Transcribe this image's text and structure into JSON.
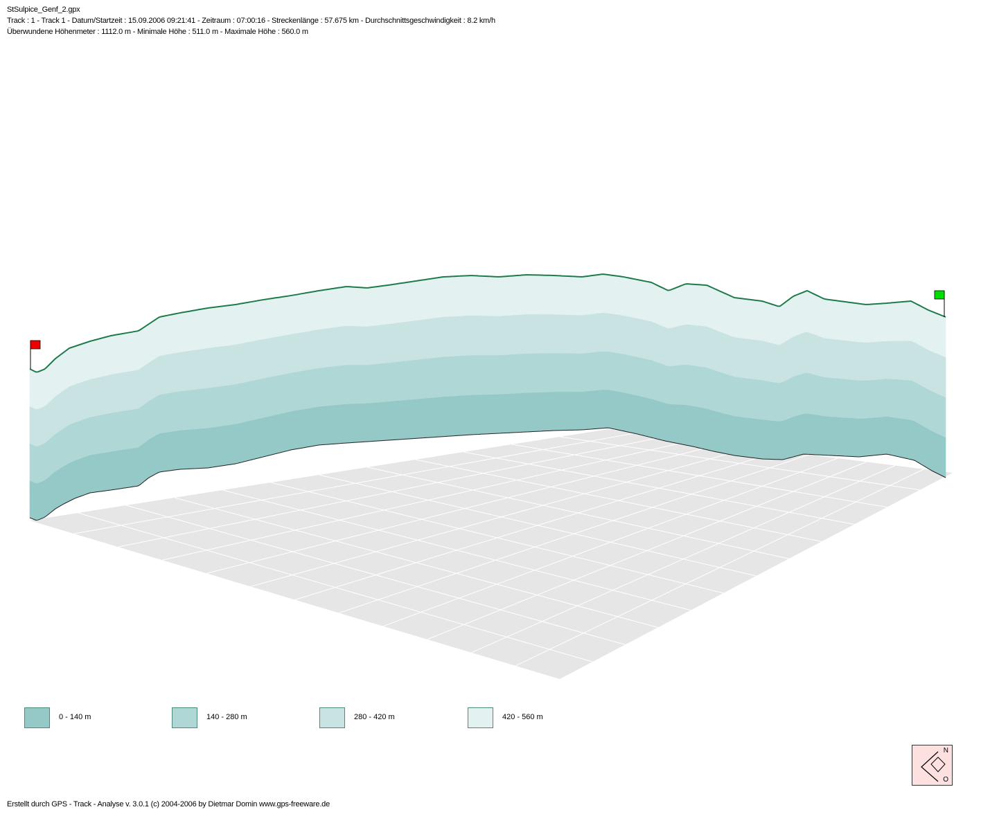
{
  "header": {
    "filename": "StSulpice_Genf_2.gpx",
    "track_info": "Track : 1 - Track 1 - Datum/Startzeit : 15.09.2006 09:21:41 - Zeitraum : 07:00:16 - Streckenlänge : 57.675 km - Durchschnittsgeschwindigkeit : 8.2 km/h",
    "height_info": "Überwundene Höhenmeter : 1112.0 m  -  Minimale Höhe : 511.0 m  -  Maximale Höhe : 560.0 m"
  },
  "chart_data": {
    "type": "area",
    "view": "3d-perspective-elevation-profile",
    "grid": true,
    "colors": {
      "track_line": "#1e7a4a",
      "floor": "#e6e6e6",
      "floor_grid": "#ffffff",
      "start_flag": "#ee0000",
      "end_flag": "#00dd00"
    },
    "bands": [
      {
        "name": "0 - 140 m",
        "color": "#94c9c8"
      },
      {
        "name": "140 - 280 m",
        "color": "#afd7d6"
      },
      {
        "name": "280 - 420 m",
        "color": "#c9e3e3"
      },
      {
        "name": "420 - 560 m",
        "color": "#e4f1f1"
      }
    ],
    "elevation_min": 511.0,
    "elevation_max": 560.0,
    "start_marker": "start-flag",
    "end_marker": "end-flag"
  },
  "legend": [
    {
      "label": "0 - 140 m",
      "color": "#94c9c8"
    },
    {
      "label": "140 - 280 m",
      "color": "#afd7d6"
    },
    {
      "label": "280 - 420 m",
      "color": "#c9e3e3"
    },
    {
      "label": "420 - 560 m",
      "color": "#e4f1f1"
    }
  ],
  "compass": {
    "north": "N",
    "east": "O"
  },
  "footer": {
    "credit": "Erstellt durch  GPS - Track - Analyse   v. 3.0.1   (c) 2004-2006 by Dietmar Domin  www.gps-freeware.de"
  }
}
